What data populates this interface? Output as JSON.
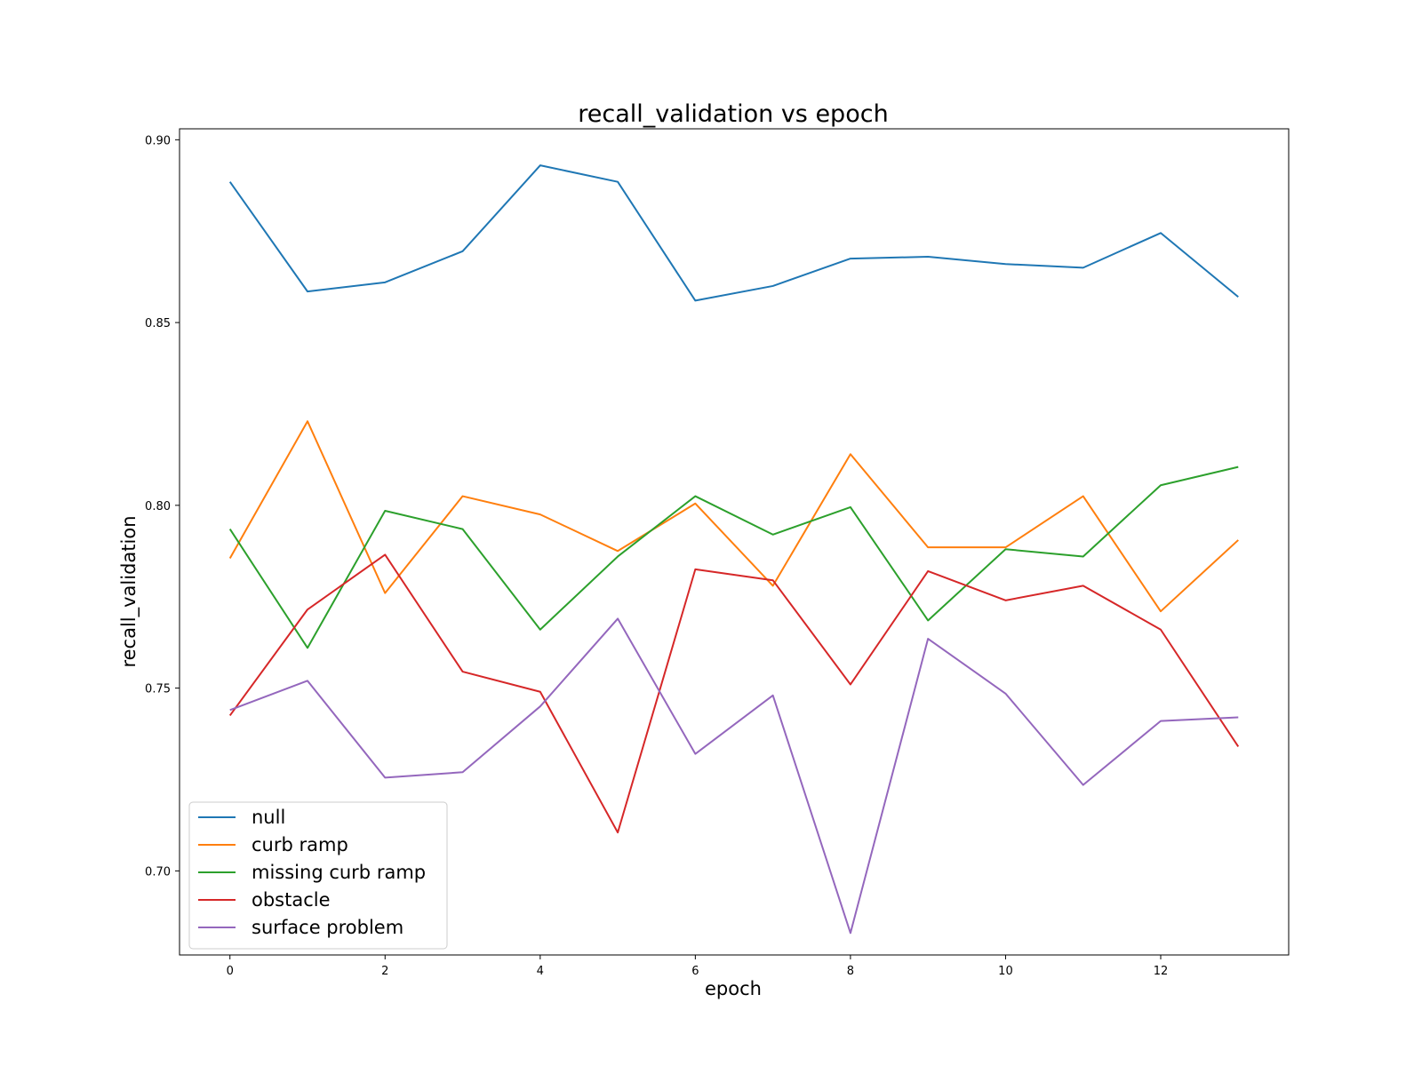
{
  "chart_data": {
    "type": "line",
    "title": "recall_validation vs epoch",
    "xlabel": "epoch",
    "ylabel": "recall_validation",
    "x": [
      0,
      1,
      2,
      3,
      4,
      5,
      6,
      7,
      8,
      9,
      10,
      11,
      12,
      13
    ],
    "xlim": [
      -0.65,
      13.65
    ],
    "ylim": [
      0.677,
      0.903
    ],
    "xticks": [
      0,
      2,
      4,
      6,
      8,
      10,
      12
    ],
    "yticks": [
      0.7,
      0.75,
      0.8,
      0.85,
      0.9
    ],
    "ytick_labels": [
      "0.70",
      "0.75",
      "0.80",
      "0.85",
      "0.90"
    ],
    "grid": false,
    "legend_position": "lower-left",
    "series": [
      {
        "name": "null",
        "color": "#1f77b4",
        "values": [
          0.8885,
          0.8585,
          0.861,
          0.8695,
          0.893,
          0.8885,
          0.856,
          0.86,
          0.8675,
          0.868,
          0.866,
          0.865,
          0.8745,
          0.857
        ]
      },
      {
        "name": "curb ramp",
        "color": "#ff7f0e",
        "values": [
          0.7855,
          0.823,
          0.776,
          0.8025,
          0.7975,
          0.7875,
          0.8005,
          0.778,
          0.814,
          0.7885,
          0.7885,
          0.8025,
          0.771,
          0.7905
        ]
      },
      {
        "name": "missing curb ramp",
        "color": "#2ca02c",
        "values": [
          0.7935,
          0.761,
          0.7985,
          0.7935,
          0.766,
          0.786,
          0.8025,
          0.792,
          0.7995,
          0.7685,
          0.788,
          0.786,
          0.8055,
          0.8105
        ]
      },
      {
        "name": "obstacle",
        "color": "#d62728",
        "values": [
          0.7425,
          0.7715,
          0.7865,
          0.7545,
          0.749,
          0.7105,
          0.7825,
          0.7795,
          0.751,
          0.782,
          0.774,
          0.778,
          0.766,
          0.734
        ]
      },
      {
        "name": "surface problem",
        "color": "#9467bd",
        "values": [
          0.744,
          0.752,
          0.7255,
          0.727,
          0.745,
          0.769,
          0.732,
          0.748,
          0.683,
          0.7635,
          0.7485,
          0.7235,
          0.741,
          0.742
        ]
      }
    ]
  }
}
